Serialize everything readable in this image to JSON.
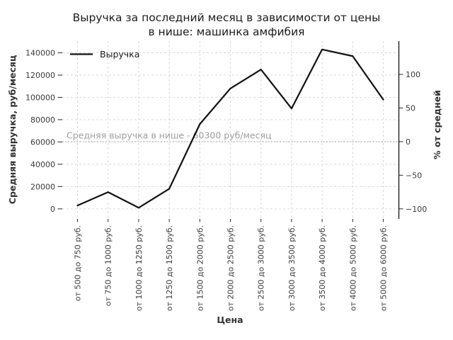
{
  "page": {
    "background": "#ffffff"
  },
  "chart_data": {
    "type": "line",
    "title": "Выручка за последний месяц в зависимости от цены в нише: машинка амфибия",
    "title_lines": [
      "Выручка за последний месяц в зависимости от цены",
      "в нише: машинка амфибия"
    ],
    "xlabel": "Цена",
    "ylabel_left": "Средняя выручка, руб/месяц",
    "ylabel_right": "% от средней",
    "legend": {
      "position": "upper-left",
      "entries": [
        "Выручка"
      ],
      "frame": false
    },
    "categories": [
      "от 500 до 750 руб.",
      "от 750 до 1000 руб.",
      "от 1000 до 1250 руб.",
      "от 1250 до 1500 руб.",
      "от 1500 до 2000 руб.",
      "от 2000 до 2500 руб.",
      "от 2500 до 3000 руб.",
      "от 3000 до 3500 руб.",
      "от 3500 до 4000 руб.",
      "от 4000 до 5000 руб.",
      "от 5000 до 6000 руб."
    ],
    "series": [
      {
        "name": "Выручка",
        "color": "#111111",
        "values": [
          3000,
          15000,
          1000,
          18000,
          76000,
          108000,
          125000,
          90000,
          143000,
          137000,
          98000
        ]
      }
    ],
    "yticks_left": [
      0,
      20000,
      40000,
      60000,
      80000,
      100000,
      120000,
      140000
    ],
    "yticks_right": [
      -100,
      -50,
      0,
      50,
      100
    ],
    "ylim": [
      -9000,
      150500
    ],
    "right_axis": {
      "unit": "% of mean",
      "formula": "(value / mean - 1) * 100"
    },
    "mean_line": {
      "value": 60300,
      "label": "Средняя выручка в нише - 60300 руб/месяц",
      "style": "dotted"
    },
    "grid": true,
    "grid_style": "dashed",
    "colors": {
      "line": "#111111",
      "grid": "#d9d9d9",
      "mean_line": "#a6a6a6",
      "annotation_text": "#9e9e9e",
      "tick_text": "#3a3a3a",
      "title_text": "#1c1c1c",
      "spine_right": "#1f1f1f"
    }
  }
}
